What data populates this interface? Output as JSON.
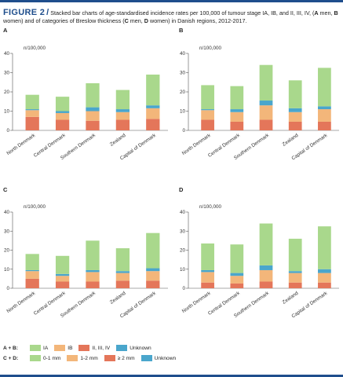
{
  "figure": {
    "label": "FIGURE 2",
    "caption_parts": [
      "Stacked bar charts of age-standardised incidence rates per 100,000 of tumour stage IA, IB, and II, III, IV, (",
      "A",
      " men, ",
      "B",
      " women) and of categories of Breslow thickness (",
      "C",
      " men, ",
      "D",
      " women) in Danish regions, 2012-2017."
    ]
  },
  "colors": {
    "c1": "#a9d88c",
    "c2": "#f3b67a",
    "c3": "#e4765a",
    "c4": "#4aa6cc"
  },
  "legends": [
    {
      "key": "A + B:",
      "items": [
        {
          "label": "IA",
          "color": "#a9d88c"
        },
        {
          "label": "IB",
          "color": "#f3b67a"
        },
        {
          "label": "II, III, IV",
          "color": "#e4765a"
        },
        {
          "label": "Unknown",
          "color": "#4aa6cc"
        }
      ]
    },
    {
      "key": "C + D:",
      "items": [
        {
          "label": "0-1 mm",
          "color": "#a9d88c"
        },
        {
          "label": "1-2 mm",
          "color": "#f3b67a"
        },
        {
          "label": "≥ 2 mm",
          "color": "#e4765a"
        },
        {
          "label": "Unknown",
          "color": "#4aa6cc"
        }
      ]
    }
  ],
  "chart_data": [
    {
      "type": "bar",
      "panel": "A",
      "ylabel": "n/100,000",
      "ylim": [
        0,
        40
      ],
      "yticks": [
        "0",
        "10",
        "20",
        "30",
        "40"
      ],
      "categories": [
        "North Denmark",
        "Central Denmark",
        "Southern Denmark",
        "Zealand",
        "Capital of Denmark"
      ],
      "series": [
        {
          "name": "II, III, IV",
          "values": [
            7.0,
            5.5,
            5.0,
            5.5,
            6.0
          ]
        },
        {
          "name": "IB",
          "values": [
            3.5,
            3.5,
            5.0,
            4.0,
            5.5
          ]
        },
        {
          "name": "Unknown",
          "values": [
            0.5,
            1.0,
            2.0,
            1.5,
            1.5
          ]
        },
        {
          "name": "IA",
          "values": [
            7.5,
            7.5,
            12.5,
            10.0,
            16.0
          ]
        }
      ]
    },
    {
      "type": "bar",
      "panel": "B",
      "ylabel": "n/100,000",
      "ylim": [
        0,
        40
      ],
      "yticks": [
        "0",
        "10",
        "20",
        "30",
        "40"
      ],
      "categories": [
        "North Denmark",
        "Central Denmark",
        "Southern Denmark",
        "Zealand",
        "Capital of Denmark"
      ],
      "series": [
        {
          "name": "II, III, IV",
          "values": [
            5.5,
            4.5,
            5.5,
            4.5,
            4.5
          ]
        },
        {
          "name": "IB",
          "values": [
            5.0,
            5.0,
            7.5,
            5.0,
            6.5
          ]
        },
        {
          "name": "Unknown",
          "values": [
            0.5,
            1.5,
            2.5,
            2.0,
            1.5
          ]
        },
        {
          "name": "IA",
          "values": [
            12.5,
            12.0,
            18.5,
            14.5,
            20.0
          ]
        }
      ]
    },
    {
      "type": "bar",
      "panel": "C",
      "ylabel": "n/100,000",
      "ylim": [
        0,
        40
      ],
      "yticks": [
        "0",
        "10",
        "20",
        "30",
        "40"
      ],
      "categories": [
        "North Denmark",
        "Central Denmark",
        "Southern Denmark",
        "Zealand",
        "Capital of Denmark"
      ],
      "series": [
        {
          "name": "≥ 2 mm",
          "values": [
            5.0,
            3.5,
            3.5,
            4.0,
            4.0
          ]
        },
        {
          "name": "1-2 mm",
          "values": [
            4.0,
            3.0,
            5.0,
            4.0,
            5.0
          ]
        },
        {
          "name": "Unknown",
          "values": [
            0.5,
            1.0,
            1.0,
            1.0,
            1.5
          ]
        },
        {
          "name": "0-1 mm",
          "values": [
            8.5,
            9.5,
            15.5,
            12.0,
            18.5
          ]
        }
      ]
    },
    {
      "type": "bar",
      "panel": "D",
      "ylabel": "n/100,000",
      "ylim": [
        0,
        40
      ],
      "yticks": [
        "0",
        "10",
        "20",
        "30",
        "40"
      ],
      "categories": [
        "North Denmark",
        "Central Denmark",
        "Southern Denmark",
        "Zealand",
        "Capital of Denmark"
      ],
      "series": [
        {
          "name": "≥ 2 mm",
          "values": [
            3.0,
            2.5,
            3.5,
            3.0,
            3.0
          ]
        },
        {
          "name": "1-2 mm",
          "values": [
            5.5,
            4.0,
            6.0,
            5.0,
            5.0
          ]
        },
        {
          "name": "Unknown",
          "values": [
            1.0,
            1.5,
            2.5,
            1.0,
            2.0
          ]
        },
        {
          "name": "0-1 mm",
          "values": [
            14.0,
            15.0,
            22.0,
            17.0,
            22.5
          ]
        }
      ]
    }
  ]
}
